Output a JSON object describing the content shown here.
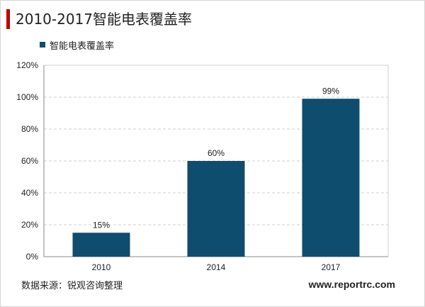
{
  "header": {
    "title": "2010-2017智能电表覆盖率",
    "accent_color": "#c00000"
  },
  "legend": {
    "label": "智能电表覆盖率",
    "color": "#0e4d6e"
  },
  "footer": {
    "source": "数据来源：锐观咨询整理",
    "website": "www.reportrc.com"
  },
  "chart_data": {
    "type": "bar",
    "categories": [
      "2010",
      "2014",
      "2017"
    ],
    "series": [
      {
        "name": "智能电表覆盖率",
        "values": [
          15,
          60,
          99
        ],
        "data_labels": [
          "15%",
          "60%",
          "99%"
        ],
        "color": "#0e4d6e"
      }
    ],
    "ylim": [
      0,
      120
    ],
    "yticks": [
      0,
      20,
      40,
      60,
      80,
      100,
      120
    ],
    "ytick_labels": [
      "0%",
      "20%",
      "40%",
      "60%",
      "80%",
      "100%",
      "120%"
    ],
    "grid": true,
    "legend_position": "top-left"
  }
}
